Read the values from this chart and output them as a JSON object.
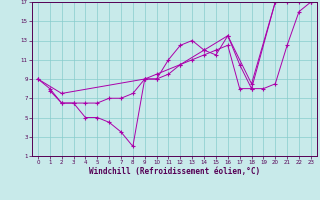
{
  "xlabel": "Windchill (Refroidissement éolien,°C)",
  "bg_color": "#c8eaea",
  "line_color": "#aa00aa",
  "marker": "+",
  "xlim": [
    -0.5,
    23.5
  ],
  "ylim": [
    1,
    17
  ],
  "xticks": [
    0,
    1,
    2,
    3,
    4,
    5,
    6,
    7,
    8,
    9,
    10,
    11,
    12,
    13,
    14,
    15,
    16,
    17,
    18,
    19,
    20,
    21,
    22,
    23
  ],
  "yticks": [
    1,
    3,
    5,
    7,
    9,
    11,
    13,
    15,
    17
  ],
  "grid_color": "#88cccc",
  "line1_x": [
    0,
    1,
    2,
    3,
    4,
    5,
    6,
    7,
    8,
    9,
    10,
    11,
    12,
    13,
    14,
    15,
    16,
    17,
    18,
    20,
    21,
    22,
    23
  ],
  "line1_y": [
    9,
    8,
    6.5,
    6.5,
    5,
    5,
    4.5,
    3.5,
    2,
    9,
    9,
    11,
    12.5,
    13,
    12,
    11.5,
    13.5,
    10.5,
    8,
    17,
    17,
    17,
    17
  ],
  "line2_x": [
    1,
    2,
    3,
    4,
    5,
    6,
    7,
    8,
    9,
    10,
    11,
    12,
    13,
    14,
    15,
    16,
    17,
    18,
    19,
    20,
    21,
    22,
    23
  ],
  "line2_y": [
    7.8,
    6.5,
    6.5,
    6.5,
    6.5,
    7,
    7,
    7.5,
    9,
    9,
    9.5,
    10.5,
    11,
    11.5,
    12,
    12.5,
    8,
    8,
    8,
    8.5,
    12.5,
    16,
    17
  ],
  "line3_x": [
    0,
    2,
    9,
    10,
    12,
    14,
    16,
    18,
    20,
    23
  ],
  "line3_y": [
    9,
    7.5,
    9,
    9.5,
    10.5,
    12,
    13.5,
    8.5,
    17,
    17
  ]
}
